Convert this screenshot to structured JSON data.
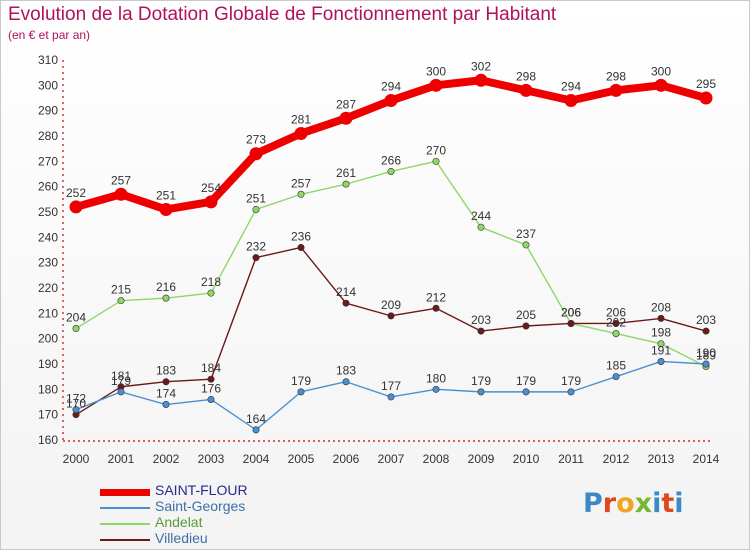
{
  "header": {
    "title": "Evolution de la Dotation Globale de Fonctionnement par Habitant",
    "subtitle": "(en € et par an)"
  },
  "logo": {
    "text": "Proxiti",
    "colors": [
      "#3c88c8",
      "#e0451b",
      "#f1a51d",
      "#74b92e",
      "#3c88c8",
      "#e0451b"
    ]
  },
  "chart_data": {
    "type": "line",
    "title": "Evolution de la Dotation Globale de Fonctionnement par Habitant",
    "subtitle": "(en € et par an)",
    "xlabel": "",
    "ylabel": "",
    "ylim": [
      160,
      310
    ],
    "ytick_step": 10,
    "grid": false,
    "legend_position": "bottom-left",
    "categories": [
      "2000",
      "2001",
      "2002",
      "2003",
      "2004",
      "2005",
      "2006",
      "2007",
      "2008",
      "2009",
      "2010",
      "2011",
      "2012",
      "2013",
      "2014"
    ],
    "series": [
      {
        "name": "SAINT-FLOUR",
        "color": "#ee0000",
        "values": [
          252,
          257,
          251,
          254,
          273,
          281,
          287,
          294,
          300,
          302,
          298,
          294,
          298,
          300,
          295
        ]
      },
      {
        "name": "Saint-Georges",
        "color": "#4a90d0",
        "values": [
          172,
          179,
          174,
          176,
          164,
          179,
          183,
          177,
          180,
          179,
          179,
          179,
          185,
          191,
          190
        ]
      },
      {
        "name": "Andelat",
        "color": "#8ed868",
        "values": [
          204,
          215,
          216,
          218,
          251,
          257,
          261,
          266,
          270,
          244,
          237,
          206,
          202,
          198,
          189
        ]
      },
      {
        "name": "Villedieu",
        "color": "#6b1a1a",
        "values": [
          170,
          181,
          183,
          184,
          232,
          236,
          214,
          209,
          212,
          203,
          205,
          206,
          206,
          208,
          203
        ]
      }
    ]
  }
}
